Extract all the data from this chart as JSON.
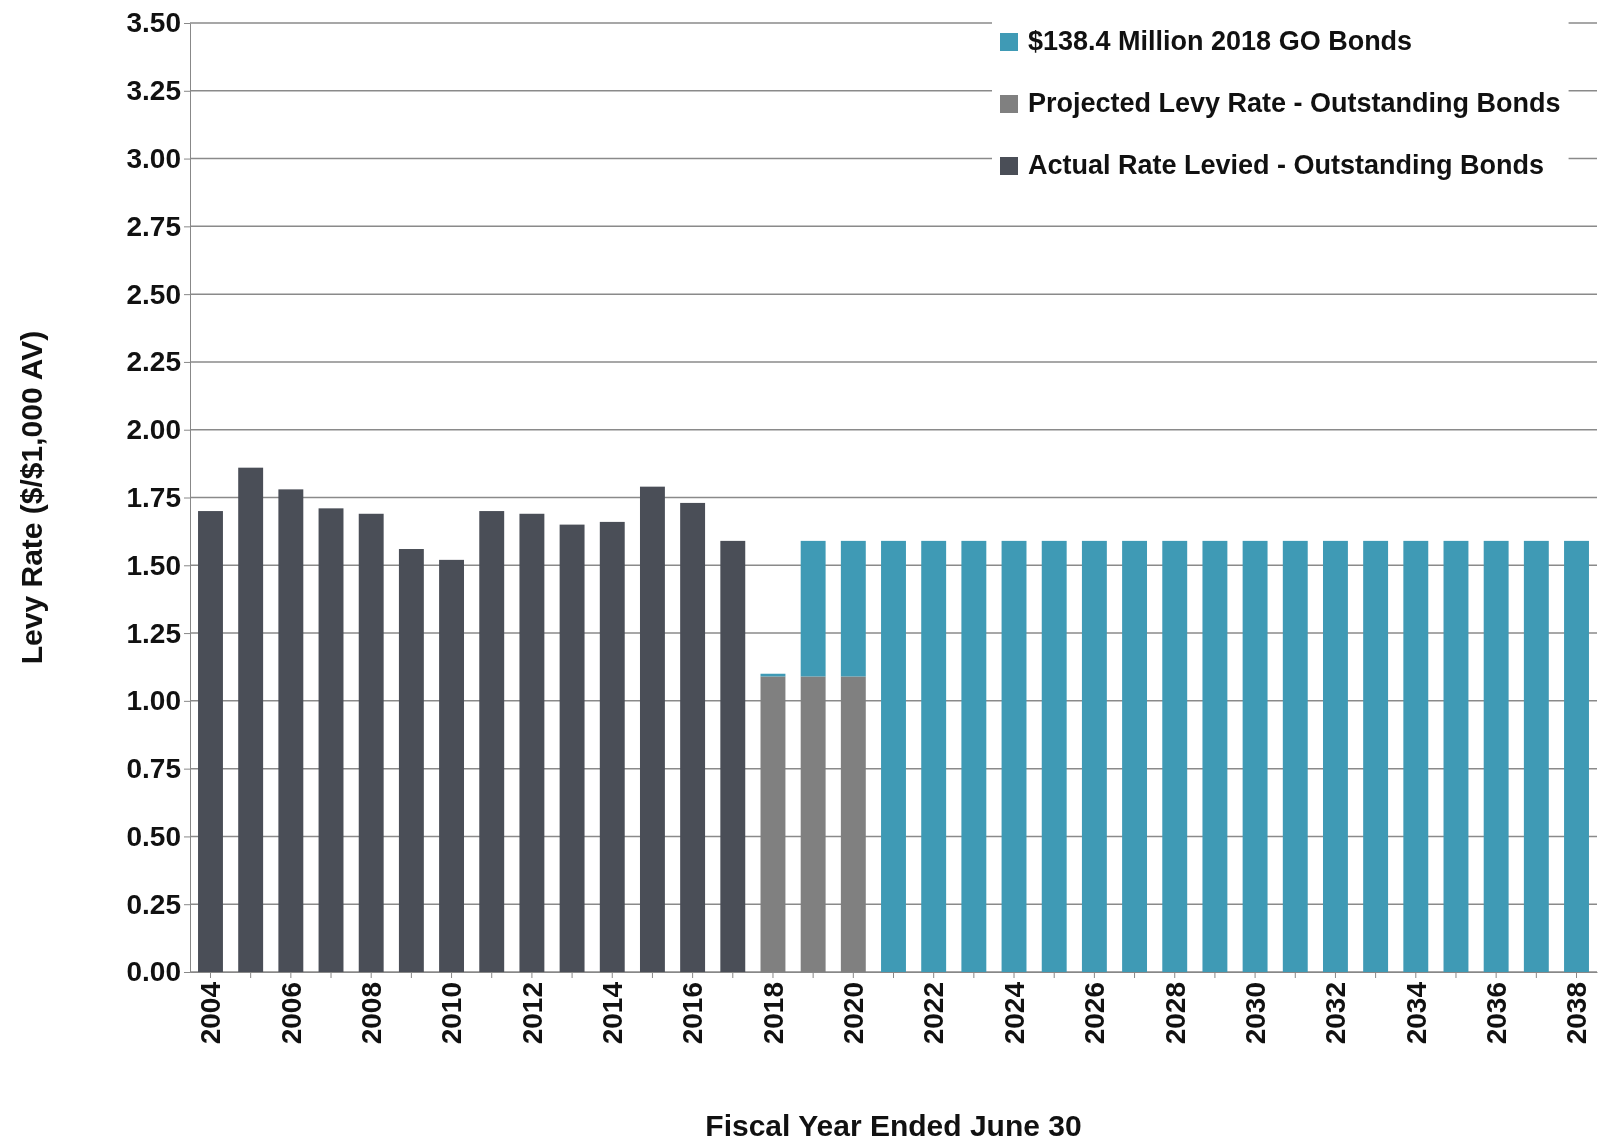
{
  "chart_data": {
    "type": "bar",
    "stacked": true,
    "xlabel": "Fiscal Year Ended June 30",
    "ylabel": "Levy Rate ($/$1,000 AV)",
    "categories": [
      "2004",
      null,
      "2006",
      null,
      "2008",
      null,
      "2010",
      null,
      "2012",
      null,
      "2014",
      null,
      "2016",
      null,
      "2018",
      null,
      "2020",
      null,
      "2022",
      null,
      "2024",
      null,
      "2026",
      null,
      "2028",
      null,
      "2030",
      null,
      "2032",
      null,
      "2034",
      null,
      "2036",
      null,
      "2038"
    ],
    "series": [
      {
        "name": "Actual Rate Levied - Outstanding Bonds",
        "color": "#4a4e57",
        "values": [
          1.7,
          1.86,
          1.78,
          1.71,
          1.69,
          1.56,
          1.52,
          1.7,
          1.69,
          1.65,
          1.66,
          1.79,
          1.73,
          1.59,
          null,
          null,
          null,
          null,
          null,
          null,
          null,
          null,
          null,
          null,
          null,
          null,
          null,
          null,
          null,
          null,
          null,
          null,
          null,
          null,
          null
        ]
      },
      {
        "name": "Projected Levy Rate - Outstanding Bonds",
        "color": "#808080",
        "values": [
          null,
          null,
          null,
          null,
          null,
          null,
          null,
          null,
          null,
          null,
          null,
          null,
          null,
          null,
          1.09,
          1.09,
          1.09,
          null,
          null,
          null,
          null,
          null,
          null,
          null,
          null,
          null,
          null,
          null,
          null,
          null,
          null,
          null,
          null,
          null,
          null
        ]
      },
      {
        "name": "$138.4 Million 2018 GO Bonds",
        "color": "#3f9ab5",
        "values": [
          null,
          null,
          null,
          null,
          null,
          null,
          null,
          null,
          null,
          null,
          null,
          null,
          null,
          null,
          0.01,
          0.5,
          0.5,
          1.59,
          1.59,
          1.59,
          1.59,
          1.59,
          1.59,
          1.59,
          1.59,
          1.59,
          1.59,
          1.59,
          1.59,
          1.59,
          1.59,
          1.59,
          1.59,
          1.59,
          1.59
        ]
      }
    ],
    "ylim": [
      0,
      3.5
    ],
    "yticks": [
      {
        "value": 0,
        "label": "0.00"
      },
      {
        "value": 0.25,
        "label": "0.25"
      },
      {
        "value": 0.5,
        "label": "0.50"
      },
      {
        "value": 0.75,
        "label": "0.75"
      },
      {
        "value": 1,
        "label": "1.00"
      },
      {
        "value": 1.25,
        "label": "1.25"
      },
      {
        "value": 1.5,
        "label": "1.50"
      },
      {
        "value": 1.75,
        "label": "1.75"
      },
      {
        "value": 2,
        "label": "2.00"
      },
      {
        "value": 2.25,
        "label": "2.25"
      },
      {
        "value": 2.5,
        "label": "2.50"
      },
      {
        "value": 2.75,
        "label": "2.75"
      },
      {
        "value": 3,
        "label": "3.00"
      },
      {
        "value": 3.25,
        "label": "3.25"
      },
      {
        "value": 3.5,
        "label": "3.50"
      }
    ],
    "grid": "y",
    "legend": "top right"
  }
}
